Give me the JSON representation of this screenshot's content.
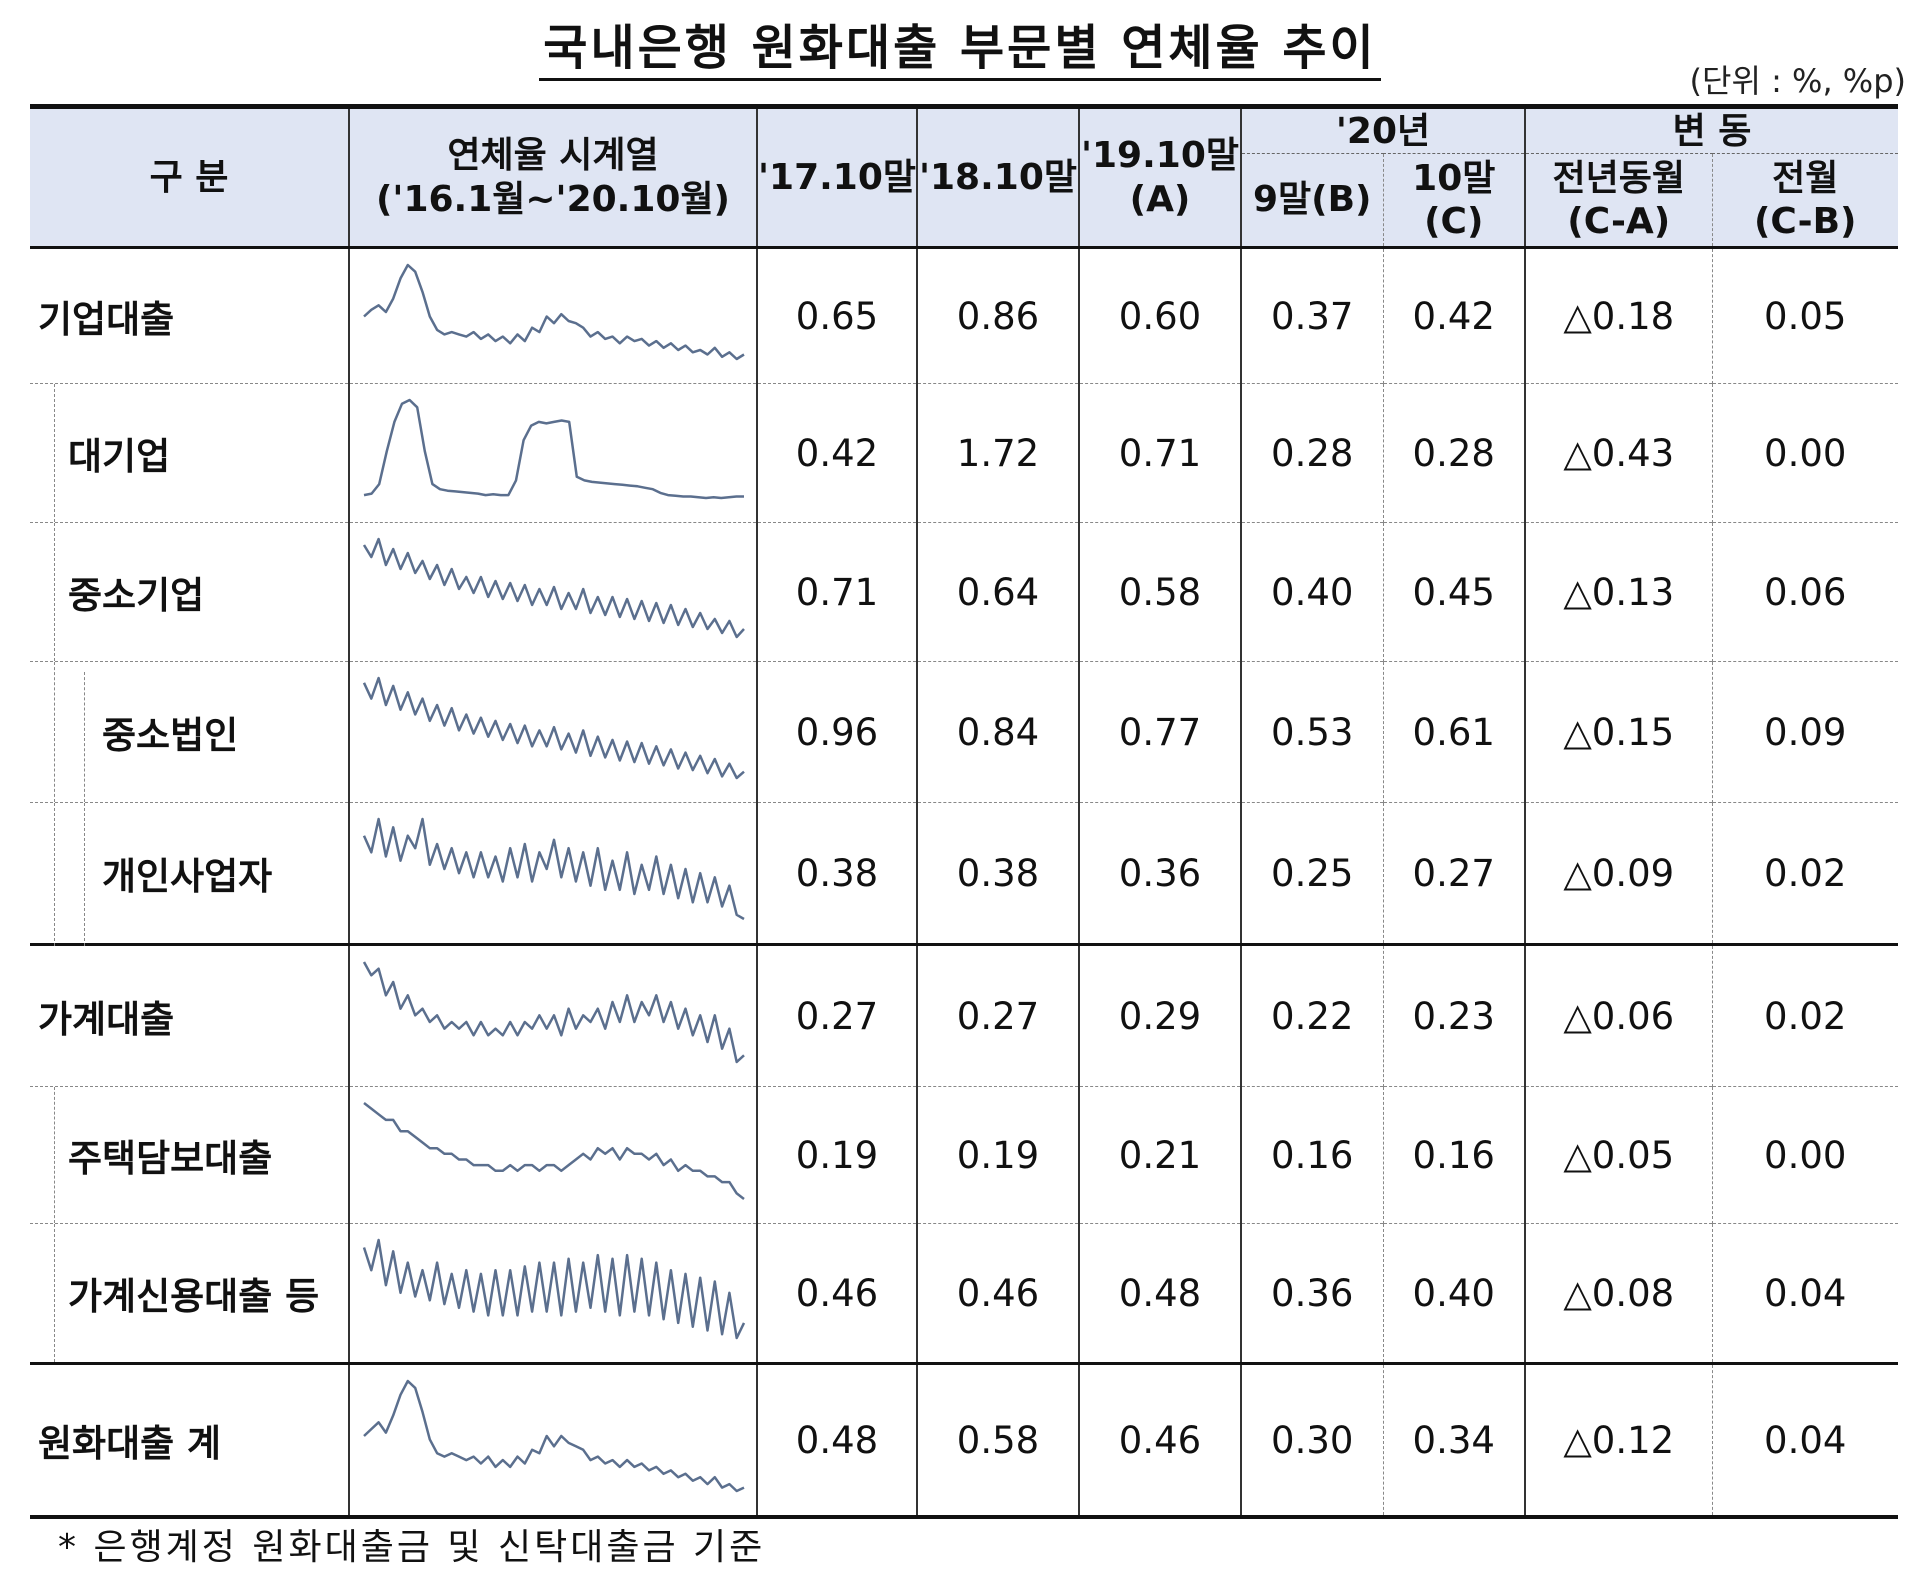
{
  "title": "국내은행 원화대출 부문별 연체율 추이",
  "unit": "(단위 : %, %p)",
  "header": {
    "category": "구 분",
    "series_title": "연체율 시계열",
    "series_range": "('16.1월~'20.10월)",
    "col_1710": "'17.10말",
    "col_1810": "'18.10말",
    "col_1910": "'19.10말",
    "col_1910_sub": "(A)",
    "group_20": "'20년",
    "col_2009": "9말(B)",
    "col_2010": "10말(C)",
    "group_change": "변 동",
    "col_yoy": "전년동월",
    "col_yoy_sub": "(C-A)",
    "col_mom": "전월",
    "col_mom_sub": "(C-B)"
  },
  "rows": [
    {
      "label": "기업대출",
      "v1710": "0.65",
      "v1810": "0.86",
      "v1910": "0.60",
      "v2009": "0.37",
      "v2010": "0.42",
      "yoy": "△0.18",
      "mom": "0.05",
      "series": [
        0.55,
        0.58,
        0.6,
        0.57,
        0.63,
        0.72,
        0.78,
        0.75,
        0.66,
        0.55,
        0.49,
        0.47,
        0.48,
        0.47,
        0.46,
        0.48,
        0.45,
        0.47,
        0.44,
        0.46,
        0.43,
        0.47,
        0.44,
        0.5,
        0.48,
        0.55,
        0.52,
        0.56,
        0.53,
        0.52,
        0.5,
        0.46,
        0.48,
        0.45,
        0.46,
        0.43,
        0.46,
        0.44,
        0.45,
        0.42,
        0.44,
        0.41,
        0.43,
        0.4,
        0.42,
        0.39,
        0.4,
        0.38,
        0.41,
        0.37,
        0.39,
        0.36,
        0.38
      ]
    },
    {
      "label": "대기업",
      "v1710": "0.42",
      "v1810": "1.72",
      "v1910": "0.71",
      "v2009": "0.28",
      "v2010": "0.28",
      "yoy": "△0.43",
      "mom": "0.00",
      "series": [
        0.3,
        0.32,
        0.45,
        0.9,
        1.3,
        1.55,
        1.6,
        1.5,
        0.9,
        0.45,
        0.38,
        0.36,
        0.35,
        0.34,
        0.33,
        0.32,
        0.3,
        0.31,
        0.3,
        0.3,
        0.5,
        1.05,
        1.25,
        1.3,
        1.28,
        1.3,
        1.32,
        1.3,
        0.55,
        0.5,
        0.48,
        0.47,
        0.46,
        0.45,
        0.44,
        0.43,
        0.42,
        0.4,
        0.38,
        0.33,
        0.3,
        0.29,
        0.28,
        0.28,
        0.27,
        0.26,
        0.27,
        0.26,
        0.27,
        0.28,
        0.28
      ]
    },
    {
      "label": "중소기업",
      "v1710": "0.71",
      "v1810": "0.64",
      "v1910": "0.58",
      "v2009": "0.40",
      "v2010": "0.45",
      "yoy": "△0.13",
      "mom": "0.06",
      "series": [
        0.82,
        0.76,
        0.85,
        0.72,
        0.8,
        0.7,
        0.78,
        0.68,
        0.74,
        0.65,
        0.72,
        0.62,
        0.7,
        0.6,
        0.66,
        0.58,
        0.66,
        0.56,
        0.64,
        0.55,
        0.63,
        0.54,
        0.62,
        0.52,
        0.6,
        0.52,
        0.61,
        0.5,
        0.58,
        0.5,
        0.6,
        0.48,
        0.56,
        0.47,
        0.56,
        0.46,
        0.55,
        0.45,
        0.54,
        0.44,
        0.53,
        0.43,
        0.52,
        0.42,
        0.5,
        0.41,
        0.48,
        0.4,
        0.45,
        0.38,
        0.44,
        0.36,
        0.4
      ]
    },
    {
      "label": "중소법인",
      "v1710": "0.96",
      "v1810": "0.84",
      "v1910": "0.77",
      "v2009": "0.53",
      "v2010": "0.61",
      "yoy": "△0.15",
      "mom": "0.09",
      "series": [
        1.12,
        1.02,
        1.15,
        0.98,
        1.1,
        0.95,
        1.06,
        0.92,
        1.02,
        0.88,
        0.98,
        0.85,
        0.96,
        0.82,
        0.92,
        0.8,
        0.9,
        0.78,
        0.88,
        0.76,
        0.86,
        0.74,
        0.85,
        0.72,
        0.82,
        0.72,
        0.84,
        0.7,
        0.8,
        0.68,
        0.82,
        0.66,
        0.78,
        0.65,
        0.76,
        0.63,
        0.75,
        0.62,
        0.74,
        0.61,
        0.72,
        0.6,
        0.7,
        0.58,
        0.68,
        0.57,
        0.66,
        0.55,
        0.64,
        0.53,
        0.61,
        0.52,
        0.56
      ]
    },
    {
      "label": "개인사업자",
      "v1710": "0.38",
      "v1810": "0.38",
      "v1910": "0.36",
      "v2009": "0.25",
      "v2010": "0.27",
      "yoy": "△0.09",
      "mom": "0.02",
      "series": [
        0.4,
        0.36,
        0.44,
        0.35,
        0.42,
        0.34,
        0.4,
        0.37,
        0.44,
        0.33,
        0.38,
        0.32,
        0.37,
        0.31,
        0.36,
        0.3,
        0.36,
        0.3,
        0.35,
        0.29,
        0.37,
        0.3,
        0.38,
        0.29,
        0.36,
        0.32,
        0.39,
        0.3,
        0.37,
        0.29,
        0.36,
        0.28,
        0.37,
        0.27,
        0.34,
        0.27,
        0.36,
        0.26,
        0.33,
        0.27,
        0.35,
        0.26,
        0.33,
        0.25,
        0.32,
        0.24,
        0.31,
        0.24,
        0.3,
        0.23,
        0.28,
        0.21,
        0.2
      ]
    },
    {
      "label": "가계대출",
      "v1710": "0.27",
      "v1810": "0.27",
      "v1910": "0.29",
      "v2009": "0.22",
      "v2010": "0.23",
      "yoy": "△0.06",
      "mom": "0.02",
      "series": [
        0.35,
        0.33,
        0.34,
        0.3,
        0.32,
        0.28,
        0.3,
        0.27,
        0.28,
        0.26,
        0.27,
        0.25,
        0.26,
        0.25,
        0.26,
        0.24,
        0.26,
        0.24,
        0.25,
        0.24,
        0.26,
        0.24,
        0.26,
        0.25,
        0.27,
        0.25,
        0.27,
        0.24,
        0.28,
        0.25,
        0.27,
        0.26,
        0.28,
        0.25,
        0.29,
        0.26,
        0.3,
        0.26,
        0.29,
        0.27,
        0.3,
        0.26,
        0.29,
        0.25,
        0.28,
        0.24,
        0.27,
        0.23,
        0.27,
        0.22,
        0.25,
        0.2,
        0.21
      ]
    },
    {
      "label": "주택담보대출",
      "v1710": "0.19",
      "v1810": "0.19",
      "v1910": "0.21",
      "v2009": "0.16",
      "v2010": "0.16",
      "yoy": "△0.05",
      "mom": "0.00",
      "series": [
        0.3,
        0.29,
        0.28,
        0.27,
        0.27,
        0.25,
        0.25,
        0.24,
        0.23,
        0.22,
        0.22,
        0.21,
        0.21,
        0.2,
        0.2,
        0.19,
        0.19,
        0.19,
        0.18,
        0.18,
        0.19,
        0.18,
        0.19,
        0.19,
        0.18,
        0.19,
        0.19,
        0.18,
        0.19,
        0.2,
        0.21,
        0.2,
        0.22,
        0.21,
        0.22,
        0.2,
        0.22,
        0.21,
        0.21,
        0.2,
        0.21,
        0.19,
        0.2,
        0.18,
        0.19,
        0.18,
        0.18,
        0.17,
        0.17,
        0.16,
        0.16,
        0.14,
        0.13
      ]
    },
    {
      "label": "가계신용대출 등",
      "v1710": "0.46",
      "v1810": "0.46",
      "v1910": "0.48",
      "v2009": "0.36",
      "v2010": "0.40",
      "yoy": "△0.08",
      "mom": "0.04",
      "series": [
        0.56,
        0.5,
        0.58,
        0.46,
        0.55,
        0.44,
        0.52,
        0.43,
        0.5,
        0.42,
        0.52,
        0.41,
        0.49,
        0.4,
        0.5,
        0.39,
        0.49,
        0.38,
        0.5,
        0.38,
        0.5,
        0.38,
        0.51,
        0.39,
        0.52,
        0.39,
        0.52,
        0.38,
        0.53,
        0.39,
        0.52,
        0.4,
        0.54,
        0.39,
        0.53,
        0.38,
        0.54,
        0.39,
        0.53,
        0.38,
        0.52,
        0.37,
        0.5,
        0.36,
        0.49,
        0.35,
        0.48,
        0.34,
        0.47,
        0.33,
        0.44,
        0.32,
        0.36
      ]
    },
    {
      "label": "원화대출 계",
      "v1710": "0.48",
      "v1810": "0.58",
      "v1910": "0.46",
      "v2009": "0.30",
      "v2010": "0.34",
      "yoy": "△0.12",
      "mom": "0.04",
      "series": [
        0.46,
        0.48,
        0.5,
        0.47,
        0.52,
        0.58,
        0.62,
        0.6,
        0.53,
        0.45,
        0.41,
        0.4,
        0.41,
        0.4,
        0.39,
        0.4,
        0.38,
        0.4,
        0.37,
        0.39,
        0.37,
        0.4,
        0.38,
        0.42,
        0.41,
        0.46,
        0.43,
        0.46,
        0.44,
        0.43,
        0.42,
        0.39,
        0.4,
        0.38,
        0.39,
        0.37,
        0.39,
        0.37,
        0.38,
        0.36,
        0.37,
        0.35,
        0.36,
        0.34,
        0.35,
        0.33,
        0.34,
        0.32,
        0.34,
        0.31,
        0.32,
        0.3,
        0.31
      ]
    }
  ],
  "footnote": "* 은행계정 원화대출금 및 신탁대출금 기준"
}
